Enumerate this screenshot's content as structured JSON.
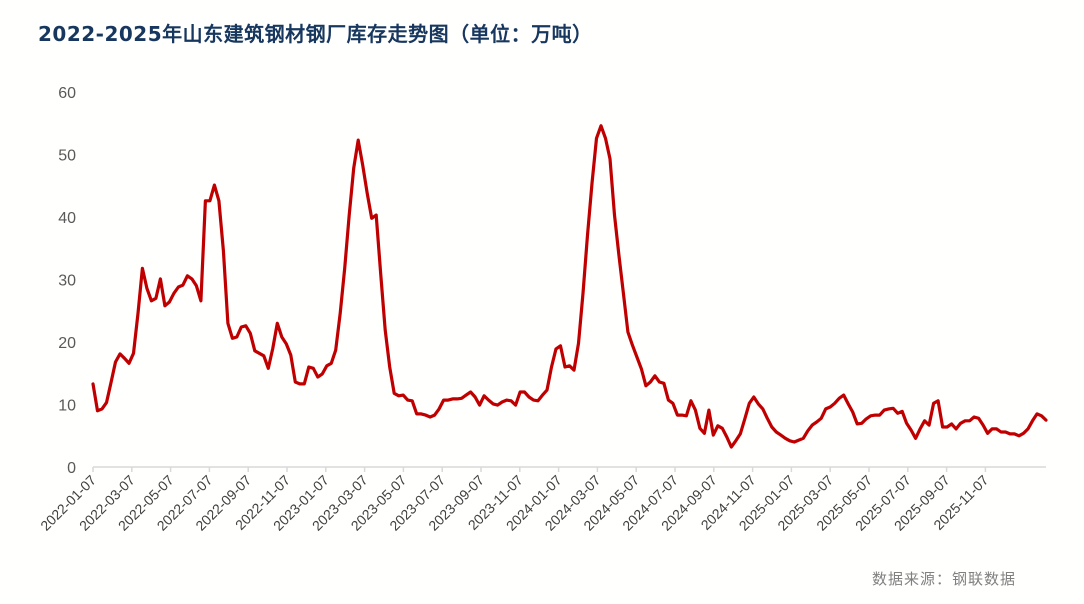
{
  "title": "2022-2025年山东建筑钢材钢厂库存走势图（单位：万吨）",
  "source": "数据来源：钢联数据",
  "colors": {
    "line": "#c00000",
    "axis": "#d9d9d9",
    "title": "#17375e"
  },
  "chart_data": {
    "type": "line",
    "title": "2022-2025年山东建筑钢材钢厂库存走势图（单位：万吨）",
    "xlabel": "",
    "ylabel": "万吨",
    "ylim": [
      0,
      60
    ],
    "yticks": [
      0,
      10,
      20,
      30,
      40,
      50,
      60
    ],
    "grid": false,
    "legend": "none",
    "x_tick_labels": [
      "2022-01-07",
      "2022-03-07",
      "2022-05-07",
      "2022-07-07",
      "2022-09-07",
      "2022-11-07",
      "2023-01-07",
      "2023-03-07",
      "2023-05-07",
      "2023-07-07",
      "2023-09-07",
      "2023-11-07",
      "2024-01-07",
      "2024-03-07",
      "2024-05-07",
      "2024-07-07",
      "2024-09-07",
      "2024-11-07",
      "2025-01-07",
      "2025-03-07",
      "2025-05-07",
      "2025-07-07",
      "2025-09-07",
      "2025-11-07"
    ],
    "series": [
      {
        "name": "山东建筑钢材钢厂库存",
        "values": [
          13.3,
          9.0,
          9.3,
          10.3,
          13.5,
          16.8,
          18.1,
          17.4,
          16.6,
          18.2,
          24.6,
          31.8,
          28.6,
          26.6,
          27.0,
          30.1,
          25.8,
          26.4,
          27.8,
          28.8,
          29.1,
          30.6,
          30.1,
          29.0,
          26.6,
          42.6,
          42.6,
          45.1,
          42.6,
          34.6,
          23.0,
          20.6,
          20.8,
          22.4,
          22.6,
          21.4,
          18.6,
          18.2,
          17.8,
          15.8,
          19.0,
          23.0,
          20.8,
          19.7,
          17.9,
          13.6,
          13.3,
          13.3,
          16.0,
          15.8,
          14.4,
          14.9,
          16.2,
          16.6,
          18.7,
          24.6,
          31.8,
          40.3,
          47.8,
          52.3,
          48.3,
          43.8,
          39.8,
          40.3,
          30.9,
          21.9,
          16.0,
          11.8,
          11.4,
          11.5,
          10.7,
          10.6,
          8.5,
          8.5,
          8.3,
          8.0,
          8.3,
          9.3,
          10.7,
          10.7,
          10.9,
          10.9,
          11.0,
          11.5,
          12.0,
          11.2,
          9.9,
          11.4,
          10.7,
          10.1,
          9.9,
          10.4,
          10.7,
          10.6,
          9.9,
          12.0,
          12.0,
          11.2,
          10.7,
          10.6,
          11.5,
          12.3,
          16.0,
          18.9,
          19.4,
          16.0,
          16.2,
          15.5,
          19.8,
          27.8,
          37.1,
          45.4,
          52.6,
          54.6,
          52.6,
          49.3,
          40.3,
          33.9,
          27.8,
          21.6,
          19.5,
          17.6,
          15.7,
          13.0,
          13.6,
          14.6,
          13.6,
          13.4,
          10.7,
          10.2,
          8.3,
          8.3,
          8.2,
          10.6,
          9.1,
          6.2,
          5.4,
          9.1,
          5.1,
          6.6,
          6.2,
          4.8,
          3.2,
          4.2,
          5.3,
          7.7,
          10.2,
          11.2,
          10.1,
          9.3,
          7.8,
          6.4,
          5.6,
          5.1,
          4.6,
          4.2,
          4.0,
          4.3,
          4.6,
          5.8,
          6.7,
          7.2,
          7.8,
          9.3,
          9.6,
          10.2,
          11.0,
          11.5,
          10.1,
          8.8,
          6.9,
          7.0,
          7.7,
          8.2,
          8.3,
          8.3,
          9.1,
          9.3,
          9.4,
          8.6,
          8.9,
          7.0,
          5.9,
          4.6,
          6.1,
          7.4,
          6.7,
          10.2,
          10.6,
          6.4,
          6.4,
          6.9,
          6.1,
          7.0,
          7.4,
          7.4,
          8.0,
          7.8,
          6.7,
          5.4,
          6.1,
          6.1,
          5.6,
          5.6,
          5.3,
          5.3,
          5.0,
          5.4,
          6.1,
          7.4,
          8.5,
          8.2,
          7.5
        ],
        "color": "#c00000"
      }
    ]
  }
}
